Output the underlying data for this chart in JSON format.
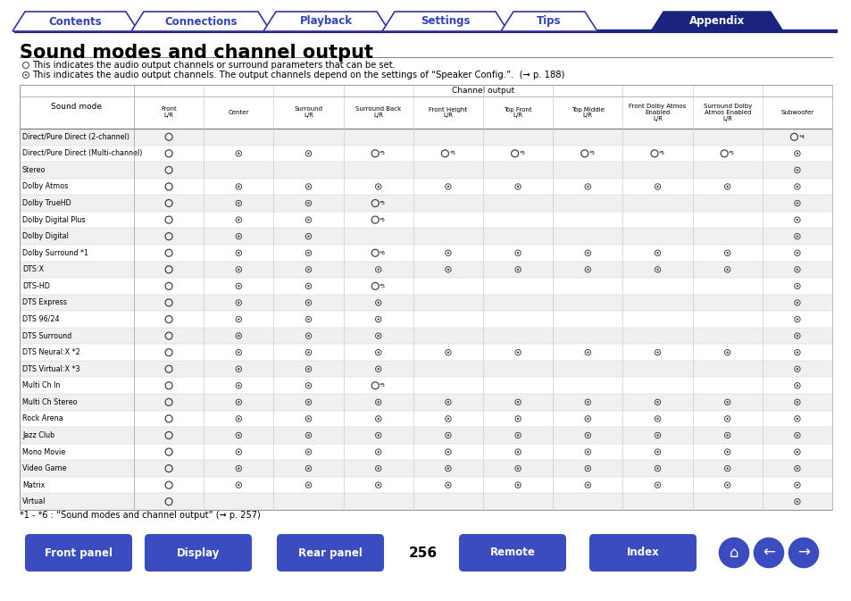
{
  "tab_labels": [
    "Contents",
    "Connections",
    "Playback",
    "Settings",
    "Tips",
    "Appendix"
  ],
  "tab_active": 5,
  "tab_color_inactive_border": "#3333aa",
  "tab_color_inactive_text": "#3344bb",
  "tab_color_active_bg": "#1a237e",
  "title": "Sound modes and channel output",
  "col_headers": [
    "Front\nL/R",
    "Center",
    "Surround\nL/R",
    "Surround Back\nL/R",
    "Front Height\nL/R",
    "Top Front\nL/R",
    "Top Middle\nL/R",
    "Front Dolby Atmos\nEnabled\nL/R",
    "Surround Dolby\nAtmos Enabled\nL/R",
    "Subwoofer"
  ],
  "row_label_header": "Sound mode",
  "rows": [
    {
      "name": "Direct/Pure Direct (2-channel)",
      "cells": [
        "O",
        "",
        "",
        "",
        "",
        "",
        "",
        "",
        "",
        "O*4"
      ]
    },
    {
      "name": "Direct/Pure Direct (Multi-channel)",
      "cells": [
        "O",
        "o",
        "o",
        "O*5",
        "O*5",
        "O*5",
        "O*5",
        "O*5",
        "O*5",
        "o"
      ]
    },
    {
      "name": "Stereo",
      "cells": [
        "O",
        "",
        "",
        "",
        "",
        "",
        "",
        "",
        "",
        "o"
      ]
    },
    {
      "name": "Dolby Atmos",
      "cells": [
        "O",
        "o",
        "o",
        "o",
        "o",
        "o",
        "o",
        "o",
        "o",
        "o"
      ]
    },
    {
      "name": "Dolby TrueHD",
      "cells": [
        "O",
        "o",
        "o",
        "O*5",
        "",
        "",
        "",
        "",
        "",
        "o"
      ]
    },
    {
      "name": "Dolby Digital Plus",
      "cells": [
        "O",
        "o",
        "o",
        "O*5",
        "",
        "",
        "",
        "",
        "",
        "o"
      ]
    },
    {
      "name": "Dolby Digital",
      "cells": [
        "O",
        "o",
        "o",
        "",
        "",
        "",
        "",
        "",
        "",
        "o"
      ]
    },
    {
      "name": "Dolby Surround *1",
      "cells": [
        "O",
        "o",
        "o",
        "O*6",
        "o",
        "o",
        "o",
        "o",
        "o",
        "o"
      ]
    },
    {
      "name": "DTS:X",
      "cells": [
        "O",
        "o",
        "o",
        "o",
        "o",
        "o",
        "o",
        "o",
        "o",
        "o"
      ]
    },
    {
      "name": "DTS-HD",
      "cells": [
        "O",
        "o",
        "o",
        "O*5",
        "",
        "",
        "",
        "",
        "",
        "o"
      ]
    },
    {
      "name": "DTS Express",
      "cells": [
        "O",
        "o",
        "o",
        "o",
        "",
        "",
        "",
        "",
        "",
        "o"
      ]
    },
    {
      "name": "DTS 96/24",
      "cells": [
        "O",
        "o",
        "o",
        "o",
        "",
        "",
        "",
        "",
        "",
        "o"
      ]
    },
    {
      "name": "DTS Surround",
      "cells": [
        "O",
        "o",
        "o",
        "o",
        "",
        "",
        "",
        "",
        "",
        "o"
      ]
    },
    {
      "name": "DTS Neural:X *2",
      "cells": [
        "O",
        "o",
        "o",
        "o",
        "o",
        "o",
        "o",
        "o",
        "o",
        "o"
      ]
    },
    {
      "name": "DTS Virtual:X *3",
      "cells": [
        "O",
        "o",
        "o",
        "o",
        "",
        "",
        "",
        "",
        "",
        "o"
      ]
    },
    {
      "name": "Multi Ch In",
      "cells": [
        "O",
        "o",
        "o",
        "O*5",
        "",
        "",
        "",
        "",
        "",
        "o"
      ]
    },
    {
      "name": "Multi Ch Stereo",
      "cells": [
        "O",
        "o",
        "o",
        "o",
        "o",
        "o",
        "o",
        "o",
        "o",
        "o"
      ]
    },
    {
      "name": "Rock Arena",
      "cells": [
        "O",
        "o",
        "o",
        "o",
        "o",
        "o",
        "o",
        "o",
        "o",
        "o"
      ]
    },
    {
      "name": "Jazz Club",
      "cells": [
        "O",
        "o",
        "o",
        "o",
        "o",
        "o",
        "o",
        "o",
        "o",
        "o"
      ]
    },
    {
      "name": "Mono Movie",
      "cells": [
        "O",
        "o",
        "o",
        "o",
        "o",
        "o",
        "o",
        "o",
        "o",
        "o"
      ]
    },
    {
      "name": "Video Game",
      "cells": [
        "O",
        "o",
        "o",
        "o",
        "o",
        "o",
        "o",
        "o",
        "o",
        "o"
      ]
    },
    {
      "name": "Matrix",
      "cells": [
        "O",
        "o",
        "o",
        "o",
        "o",
        "o",
        "o",
        "o",
        "o",
        "o"
      ]
    },
    {
      "name": "Virtual",
      "cells": [
        "O",
        "",
        "",
        "",
        "",
        "",
        "",
        "",
        "",
        "o"
      ]
    }
  ],
  "footnote": "*1 - *6 : “Sound modes and channel output” (➞ p. 257)",
  "bottom_buttons": [
    "Front panel",
    "Display",
    "Rear panel",
    "Remote",
    "Index"
  ],
  "page_number": "256",
  "btn_color": "#3a4cc0",
  "bg_color": "#ffffff",
  "row_odd_bg": "#f0f0f0",
  "row_even_bg": "#ffffff"
}
